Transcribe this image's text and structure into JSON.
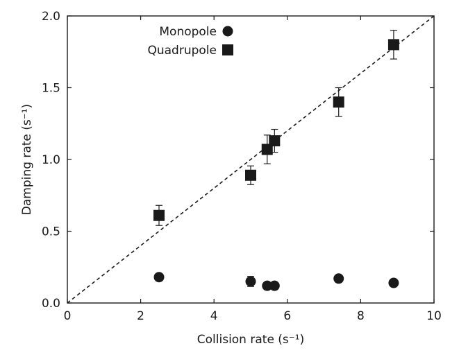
{
  "chart_data": {
    "type": "scatter",
    "title": "",
    "xlabel": "Collision rate (s⁻¹)",
    "ylabel": "Damping rate (s⁻¹)",
    "xlim": [
      0,
      10
    ],
    "ylim": [
      0,
      2.0
    ],
    "xticks": [
      0,
      2,
      4,
      6,
      8,
      10
    ],
    "xtick_labels": [
      "0",
      "2",
      "4",
      "6",
      "8",
      "10"
    ],
    "yticks": [
      0,
      0.5,
      1.0,
      1.5,
      2.0
    ],
    "ytick_labels": [
      "0.0",
      "0.5",
      "1.0",
      "1.5",
      "2.0"
    ],
    "legend_position": "top-left-center",
    "reference_line": {
      "name": "y = x / 5",
      "style": "dashed",
      "x": [
        0,
        10
      ],
      "y": [
        0,
        2.0
      ]
    },
    "series": [
      {
        "name": "Monopole",
        "marker": "circle",
        "points": [
          {
            "x": 2.5,
            "y": 0.18,
            "err": 0.0
          },
          {
            "x": 5.0,
            "y": 0.15,
            "err": 0.035
          },
          {
            "x": 5.45,
            "y": 0.12,
            "err": 0.0
          },
          {
            "x": 5.65,
            "y": 0.12,
            "err": 0.0
          },
          {
            "x": 7.4,
            "y": 0.17,
            "err": 0.0
          },
          {
            "x": 8.9,
            "y": 0.14,
            "err": 0.0
          }
        ]
      },
      {
        "name": "Quadrupole",
        "marker": "square",
        "points": [
          {
            "x": 2.5,
            "y": 0.61,
            "err": 0.07
          },
          {
            "x": 5.0,
            "y": 0.89,
            "err": 0.065
          },
          {
            "x": 5.45,
            "y": 1.07,
            "err": 0.1
          },
          {
            "x": 5.65,
            "y": 1.13,
            "err": 0.08
          },
          {
            "x": 7.4,
            "y": 1.4,
            "err": 0.1
          },
          {
            "x": 8.9,
            "y": 1.8,
            "err": 0.1
          }
        ]
      }
    ]
  },
  "colors": {
    "ink": "#1a1a1a",
    "background": "#ffffff"
  }
}
